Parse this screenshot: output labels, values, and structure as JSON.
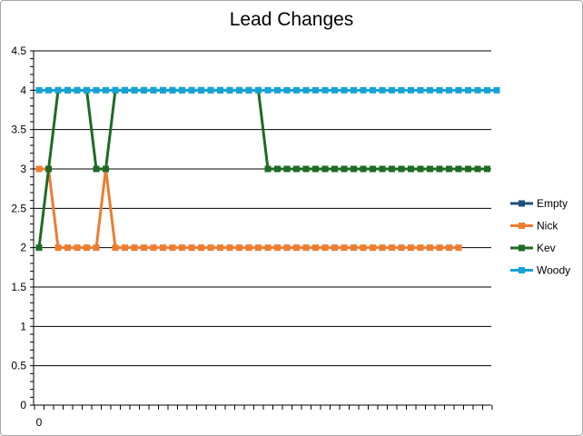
{
  "chart_data": {
    "type": "line",
    "title": "Lead Changes",
    "xlabel": "",
    "ylabel": "",
    "ylim": [
      0,
      4.5
    ],
    "yticks": [
      "0",
      "0.5",
      "1",
      "1.5",
      "2",
      "2.5",
      "3",
      "3.5",
      "4",
      "4.5"
    ],
    "xticks_labeled": [
      "0"
    ],
    "x_count": 48,
    "grid": true,
    "legend_position": "right",
    "series": [
      {
        "name": "Empty",
        "color": "#1f4e79",
        "values": []
      },
      {
        "name": "Nick",
        "color": "#ed7d31",
        "values": [
          3,
          3,
          2,
          2,
          2,
          2,
          2,
          3,
          2,
          2,
          2,
          2,
          2,
          2,
          2,
          2,
          2,
          2,
          2,
          2,
          2,
          2,
          2,
          2,
          2,
          2,
          2,
          2,
          2,
          2,
          2,
          2,
          2,
          2,
          2,
          2,
          2,
          2,
          2,
          2,
          2,
          2,
          2,
          2,
          2
        ]
      },
      {
        "name": "Kev",
        "color": "#1e6b24",
        "values": [
          2,
          3,
          4,
          4,
          4,
          4,
          3,
          3,
          4,
          4,
          4,
          4,
          4,
          4,
          4,
          4,
          4,
          4,
          4,
          4,
          4,
          4,
          4,
          4,
          3,
          3,
          3,
          3,
          3,
          3,
          3,
          3,
          3,
          3,
          3,
          3,
          3,
          3,
          3,
          3,
          3,
          3,
          3,
          3,
          3,
          3,
          3,
          3
        ]
      },
      {
        "name": "Woody",
        "color": "#17a2d6",
        "values": [
          4,
          4,
          4,
          4,
          4,
          4,
          4,
          4,
          4,
          4,
          4,
          4,
          4,
          4,
          4,
          4,
          4,
          4,
          4,
          4,
          4,
          4,
          4,
          4,
          4,
          4,
          4,
          4,
          4,
          4,
          4,
          4,
          4,
          4,
          4,
          4,
          4,
          4,
          4,
          4,
          4,
          4,
          4,
          4,
          4,
          4,
          4,
          4,
          4
        ]
      }
    ]
  }
}
